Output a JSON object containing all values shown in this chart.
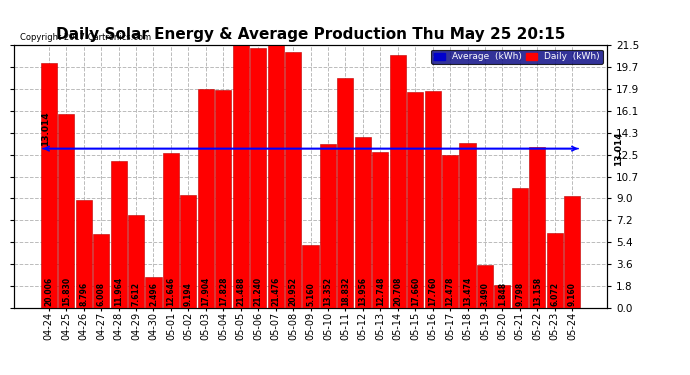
{
  "title": "Daily Solar Energy & Average Production Thu May 25 20:15",
  "copyright": "Copyright 2017 Cartronics.com",
  "average_value": 13.014,
  "categories": [
    "04-24",
    "04-25",
    "04-26",
    "04-27",
    "04-28",
    "04-29",
    "04-30",
    "05-01",
    "05-02",
    "05-03",
    "05-04",
    "05-05",
    "05-06",
    "05-07",
    "05-08",
    "05-09",
    "05-10",
    "05-11",
    "05-12",
    "05-13",
    "05-14",
    "05-15",
    "05-16",
    "05-17",
    "05-18",
    "05-19",
    "05-20",
    "05-21",
    "05-22",
    "05-23",
    "05-24"
  ],
  "values": [
    20.006,
    15.83,
    8.796,
    6.008,
    11.964,
    7.612,
    2.496,
    12.646,
    9.194,
    17.904,
    17.828,
    21.488,
    21.24,
    21.476,
    20.952,
    5.16,
    13.352,
    18.832,
    13.956,
    12.748,
    20.708,
    17.66,
    17.76,
    12.478,
    13.474,
    3.49,
    1.848,
    9.798,
    13.158,
    6.072,
    9.16
  ],
  "bar_color": "#ff0000",
  "bar_edgecolor": "#bb0000",
  "average_line_color": "#0000ff",
  "background_color": "#ffffff",
  "plot_bg_color": "#ffffff",
  "ylim": [
    0,
    21.5
  ],
  "yticks": [
    0.0,
    1.8,
    3.6,
    5.4,
    7.2,
    9.0,
    10.7,
    12.5,
    14.3,
    16.1,
    17.9,
    19.7,
    21.5
  ],
  "grid_color": "#bbbbbb",
  "title_fontsize": 11,
  "label_fontsize": 5.5,
  "tick_fontsize": 7.5,
  "avg_label": "13.014",
  "legend_avg_color": "#0000cc",
  "legend_daily_color": "#ff0000",
  "legend_bg_color": "#000080"
}
